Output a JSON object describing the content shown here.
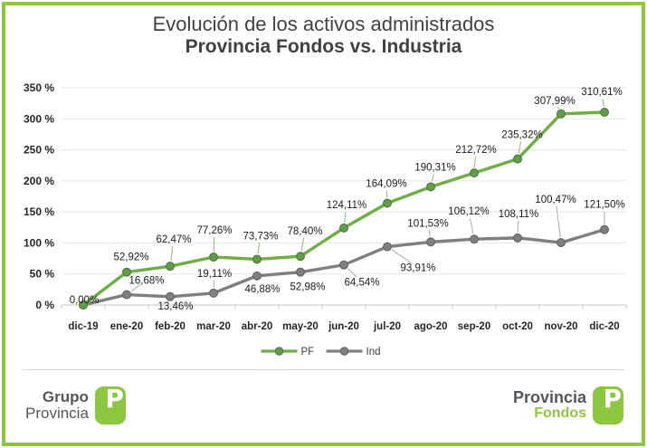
{
  "title": {
    "line1": "Evolución de los activos administrados",
    "line2": "Provincia Fondos vs. Industria"
  },
  "chart_data": {
    "type": "line",
    "x": [
      "dic-19",
      "ene-20",
      "feb-20",
      "mar-20",
      "abr-20",
      "may-20",
      "jun-20",
      "jul-20",
      "ago-20",
      "sep-20",
      "oct-20",
      "nov-20",
      "dic-20"
    ],
    "series": [
      {
        "name": "PF",
        "color": "#70ad47",
        "marker_fill": "#649a4d",
        "marker_stroke": "#4e7d3a",
        "values": [
          0,
          52.92,
          62.47,
          77.26,
          73.73,
          78.4,
          124.11,
          164.09,
          190.31,
          212.72,
          235.32,
          307.99,
          310.61
        ],
        "labels": [
          "0,00%",
          "52,92%",
          "62,47%",
          "77,26%",
          "73,73%",
          "78,40%",
          "124,11%",
          "164,09%",
          "190,31%",
          "212,72%",
          "235,32%",
          "307,99%",
          "310,61%"
        ]
      },
      {
        "name": "Ind",
        "color": "#7f7f7f",
        "marker_fill": "#7f7f7f",
        "marker_stroke": "#656565",
        "values": [
          0,
          16.68,
          13.46,
          19.11,
          46.88,
          52.98,
          64.54,
          93.91,
          101.53,
          106.12,
          108.11,
          100.47,
          121.5
        ],
        "labels": [
          "",
          "16,68%",
          "13,46%",
          "19,11%",
          "46,88%",
          "52,98%",
          "64,54%",
          "93,91%",
          "101,53%",
          "106,12%",
          "108,11%",
          "100,47%",
          "121,50%"
        ]
      }
    ],
    "ylim": [
      0,
      350
    ],
    "ytick_labels": [
      "0 %",
      "50 %",
      "100 %",
      "150 %",
      "200 %",
      "250 %",
      "300 %",
      "350 %"
    ],
    "grid": true,
    "legend_position": "bottom"
  },
  "footer": {
    "left_logo": {
      "line1": "Grupo",
      "line2": "Provincia",
      "monogram": "P"
    },
    "right_logo": {
      "line1": "Provincia",
      "line2": "Fondos",
      "monogram": "P"
    }
  },
  "colors": {
    "frame_green": "#8dc63f",
    "chart_green": "#70ad47",
    "chart_gray": "#7f7f7f",
    "grid_line": "#e5e5e5",
    "axis_line": "#c6c6c6",
    "label_text": "#1a1a1a",
    "axis_text": "#262626",
    "logo_text": "#54565b"
  }
}
